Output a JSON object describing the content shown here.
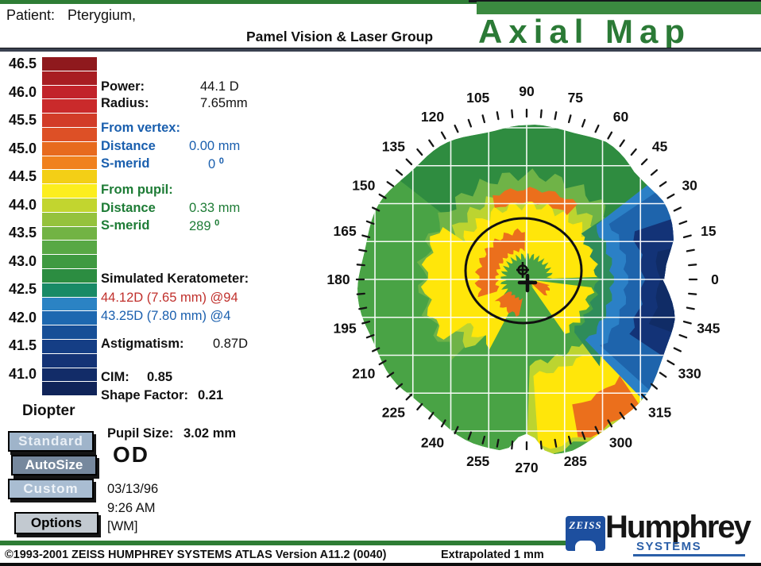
{
  "header": {
    "patient_label": "Patient:",
    "patient_value": "Pterygium,",
    "clinic": "Pamel Vision & Laser Group",
    "title": "Axial Map"
  },
  "scale": {
    "unit_label": "Diopter",
    "labels": [
      "46.5",
      "46.0",
      "45.5",
      "45.0",
      "44.5",
      "44.0",
      "43.5",
      "43.0",
      "42.5",
      "42.0",
      "41.5",
      "41.0"
    ],
    "block_colors": [
      "#8f191d",
      "#a81d22",
      "#c2232a",
      "#ca2a2b",
      "#d23c28",
      "#dd5026",
      "#e76a1e",
      "#f0811d",
      "#f3cf16",
      "#fcee1e",
      "#c2d52f",
      "#95c23c",
      "#72b344",
      "#58a845",
      "#3f9a41",
      "#2c8d41",
      "#188a66",
      "#2b83c4",
      "#1d68b0",
      "#174f97",
      "#153e85",
      "#143376",
      "#122c68",
      "#102459"
    ]
  },
  "stats": {
    "power_label": "Power:",
    "power_value": "44.1 D",
    "radius_label": "Radius:",
    "radius_value": "7.65mm",
    "from_vertex_label": "From vertex:",
    "from_pupil_label": "From pupil:",
    "distance_label": "Distance",
    "smerid_label": "S-merid",
    "vertex_distance_value": "0.00 mm",
    "vertex_smerid_value": "0",
    "pupil_distance_value": "0.33 mm",
    "pupil_smerid_value": "289",
    "degree_glyph": "0",
    "simk_label": "Simulated Keratometer:",
    "simk_steep": "44.12D (7.65 mm) @94",
    "simk_flat": "43.25D (7.80 mm) @4",
    "astig_label": "Astigmatism:",
    "astig_value": "0.87D",
    "cim_label": "CIM:",
    "cim_value": "0.85",
    "shape_label": "Shape Factor:",
    "shape_value": "0.21",
    "pupilsize_label": "Pupil Size:",
    "pupilsize_value": "3.02 mm",
    "eye": "OD",
    "date": "03/13/96",
    "time": "9:26 AM",
    "operator": "[WM]"
  },
  "buttons": {
    "standard": "Standard",
    "autosize": "AutoSize",
    "custom": "Custom",
    "options": "Options"
  },
  "map": {
    "degree_labels": [
      "0",
      "15",
      "30",
      "45",
      "60",
      "75",
      "90",
      "105",
      "120",
      "135",
      "150",
      "165",
      "180",
      "195",
      "210",
      "225",
      "240",
      "255",
      "270",
      "285",
      "300",
      "315",
      "330",
      "345"
    ],
    "palette": {
      "green": "#49a345",
      "dark_green": "#2f8c40",
      "light_green": "#6fb347",
      "yellow_green": "#bcd430",
      "yellow": "#ffe60a",
      "orange": "#eb6f1c",
      "teal": "#2e8c5a",
      "light_blue": "#2b80c6",
      "blue": "#1e64ac",
      "navy": "#133377",
      "dark_navy": "#102c66"
    }
  },
  "footer": {
    "copyright": "©1993-2001 ZEISS HUMPHREY SYSTEMS ATLAS  Version A11.2 (0040)",
    "extrapolated": "Extrapolated 1 mm",
    "logo_badge": "ZEISS",
    "logo_name": "Humphrey",
    "logo_subtitle": "SYSTEMS"
  },
  "colors": {
    "title_green": "#2b7a36",
    "header_bar_green": "#3b8a40",
    "accent_blue": "#1a5fae",
    "accent_green": "#1e7c36",
    "accent_red": "#c0302c",
    "logo_blue": "#1d4f9f"
  }
}
